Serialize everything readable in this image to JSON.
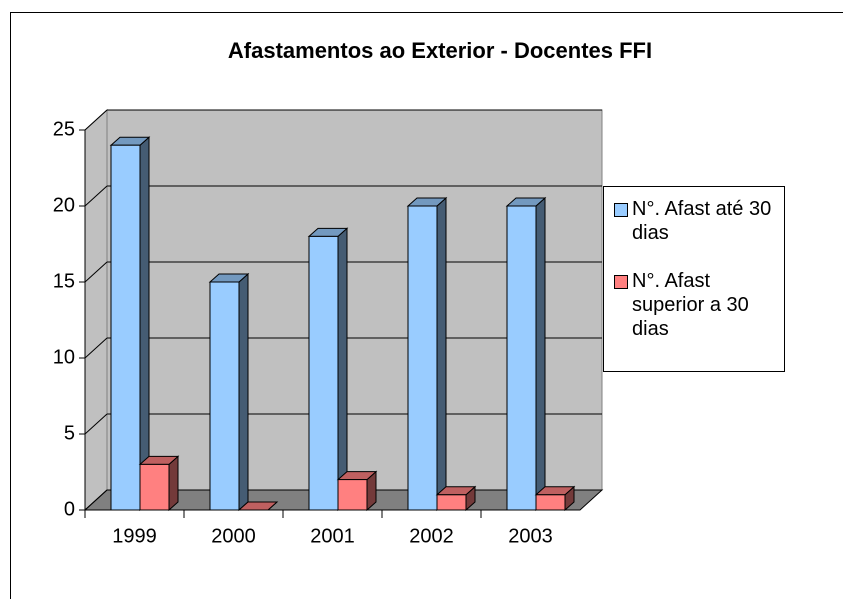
{
  "chart_data": {
    "type": "bar3d",
    "title": "Afastamentos ao Exterior - Docentes FFI",
    "categories": [
      "1999",
      "2000",
      "2001",
      "2002",
      "2003"
    ],
    "series": [
      {
        "name": "N°. Afast até 30 dias",
        "color": "#99ccff",
        "values": [
          24,
          15,
          18,
          20,
          20
        ]
      },
      {
        "name": "N°. Afast superior a 30 dias",
        "color": "#ff8080",
        "values": [
          3,
          0,
          2,
          1,
          1
        ]
      }
    ],
    "ylim": [
      0,
      25
    ],
    "yticks": [
      0,
      5,
      10,
      15,
      20,
      25
    ],
    "grid": true,
    "legend": "right"
  }
}
